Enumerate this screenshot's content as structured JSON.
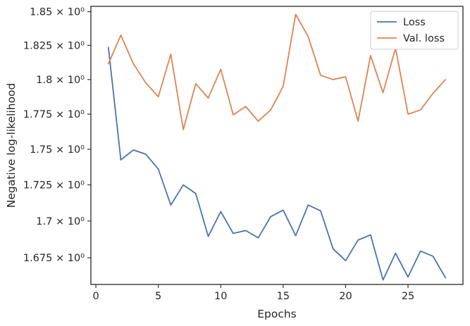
{
  "chart_data": {
    "type": "line",
    "xlabel": "Epochs",
    "ylabel": "Negative log-likelihood",
    "xlim": [
      -0.4,
      29.4
    ],
    "ylim": [
      1.657,
      1.854
    ],
    "yscale": "log",
    "grid": false,
    "legend_position": "top-right",
    "x_ticks": [
      0,
      5,
      10,
      15,
      20,
      25
    ],
    "x_tick_labels": [
      "0",
      "5",
      "10",
      "15",
      "20",
      "25"
    ],
    "y_ticks": [
      1.675,
      1.7,
      1.725,
      1.75,
      1.775,
      1.8,
      1.825,
      1.85
    ],
    "y_tick_labels": [
      "1.675 × 10⁰",
      "1.7 × 10⁰",
      "1.725 × 10⁰",
      "1.75 × 10⁰",
      "1.775 × 10⁰",
      "1.8 × 10⁰",
      "1.825 × 10⁰",
      "1.85 × 10⁰"
    ],
    "x": [
      1,
      2,
      3,
      4,
      5,
      6,
      7,
      8,
      9,
      10,
      11,
      12,
      13,
      14,
      15,
      16,
      17,
      18,
      19,
      20,
      21,
      22,
      23,
      24,
      25,
      26,
      27,
      28
    ],
    "series": [
      {
        "name": "Loss",
        "color": "#4c72b0",
        "values": [
          1.8235,
          1.7425,
          1.7495,
          1.7465,
          1.736,
          1.711,
          1.725,
          1.719,
          1.6895,
          1.7065,
          1.6915,
          1.6935,
          1.6885,
          1.703,
          1.7075,
          1.69,
          1.711,
          1.707,
          1.681,
          1.673,
          1.687,
          1.6905,
          1.66,
          1.678,
          1.662,
          1.6795,
          1.676,
          1.6615
        ]
      },
      {
        "name": "Val. loss",
        "color": "#dd8452",
        "values": [
          1.8115,
          1.8325,
          1.8115,
          1.7975,
          1.7875,
          1.8185,
          1.764,
          1.797,
          1.7865,
          1.8075,
          1.7745,
          1.7805,
          1.77,
          1.778,
          1.795,
          1.848,
          1.8315,
          1.803,
          1.8,
          1.802,
          1.77,
          1.8175,
          1.7905,
          1.823,
          1.775,
          1.778,
          1.79,
          1.8
        ]
      }
    ]
  }
}
